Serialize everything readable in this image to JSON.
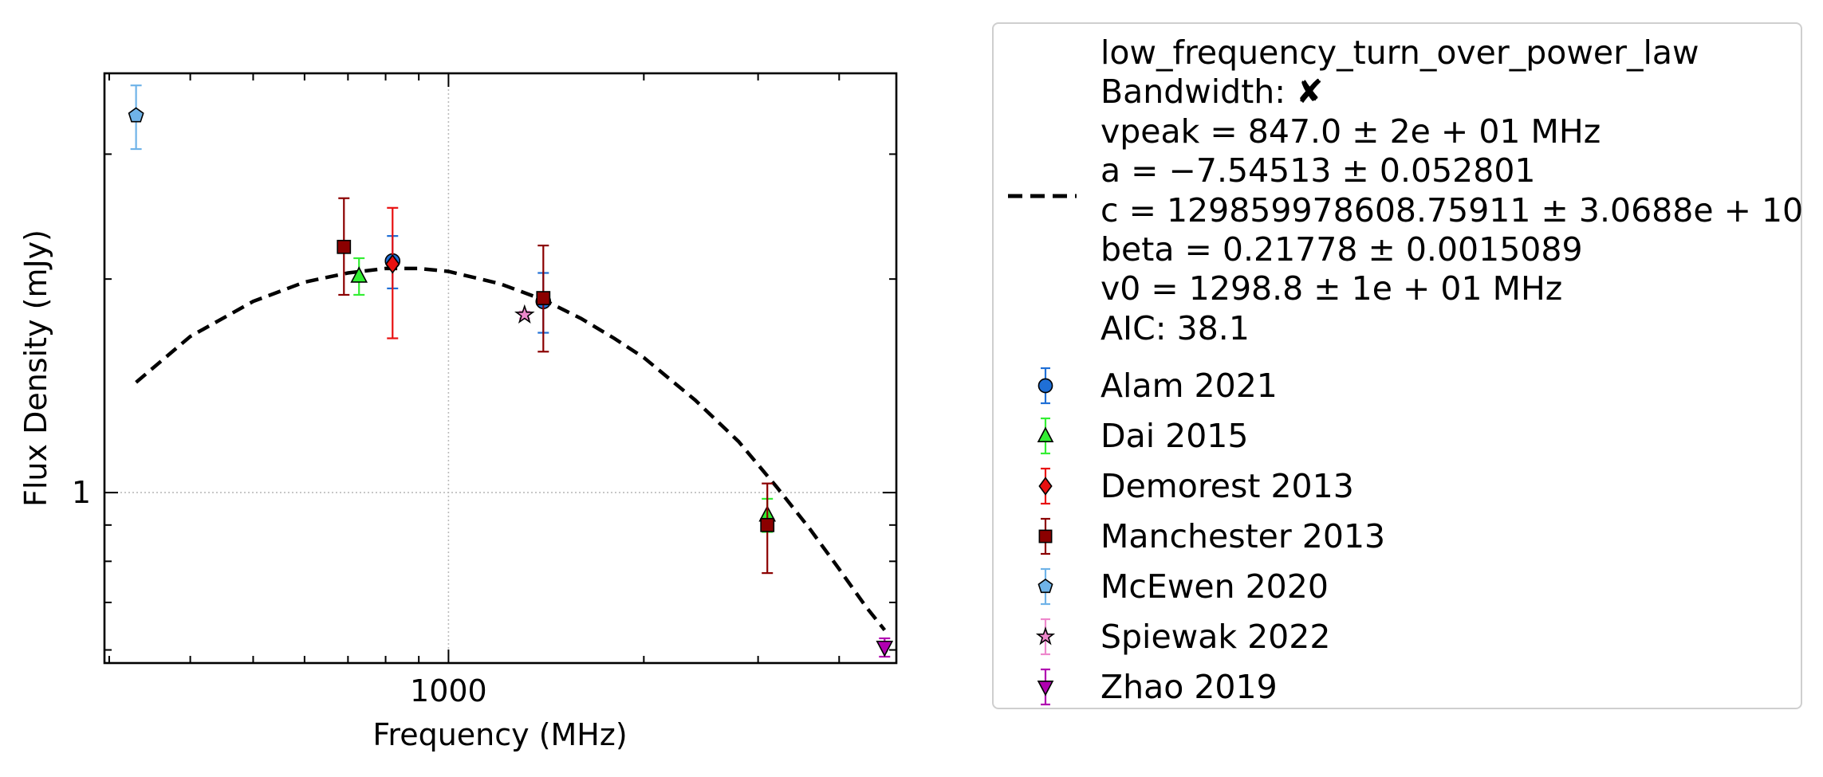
{
  "chart_data": {
    "type": "scatter",
    "xlabel": "Frequency (MHz)",
    "ylabel": "Flux Density (mJy)",
    "xscale": "log",
    "yscale": "log",
    "xlim": [
      295,
      4900
    ],
    "ylim": [
      0.575,
      3.9
    ],
    "xticks": [
      1000
    ],
    "xtick_labels": [
      "1000"
    ],
    "yticks": [
      1
    ],
    "ytick_labels": [
      "1"
    ],
    "grid": true,
    "legend_position": "outside-right",
    "fit": {
      "label": "low_frequency_turn_over_power_law",
      "lines": [
        "Bandwidth: ✘",
        "vpeak = 847.0 ± 2e + 01 MHz",
        "a = −7.54513 ± 0.052801",
        "c = 129859978608.75911 ± 3.0688e + 10",
        "beta = 0.21778 ± 0.0015089",
        "v0 = 1298.8 ± 1e + 01 MHz",
        "AIC: 38.1"
      ],
      "color": "#000000",
      "style": "dashed",
      "points": [
        [
          330,
          1.43
        ],
        [
          400,
          1.66
        ],
        [
          500,
          1.86
        ],
        [
          600,
          1.98
        ],
        [
          700,
          2.04
        ],
        [
          800,
          2.07
        ],
        [
          900,
          2.07
        ],
        [
          1000,
          2.05
        ],
        [
          1200,
          1.97
        ],
        [
          1400,
          1.87
        ],
        [
          1600,
          1.76
        ],
        [
          1800,
          1.65
        ],
        [
          2000,
          1.55
        ],
        [
          2400,
          1.35
        ],
        [
          2800,
          1.18
        ],
        [
          3200,
          1.02
        ],
        [
          3600,
          0.89
        ],
        [
          4000,
          0.78
        ],
        [
          4400,
          0.69
        ],
        [
          4700,
          0.64
        ]
      ]
    },
    "series": [
      {
        "name": "Alam 2021",
        "marker": "circle",
        "color": "#1f6fd6",
        "points": [
          [
            820,
            2.12,
            0.18,
            0.18
          ],
          [
            1400,
            1.86,
            0.18,
            0.18
          ]
        ]
      },
      {
        "name": "Dai 2015",
        "marker": "triangle-up",
        "color": "#33ee33",
        "points": [
          [
            728,
            2.02,
            0.12,
            0.12
          ],
          [
            3100,
            0.93,
            0.05,
            0.05
          ]
        ]
      },
      {
        "name": "Demorest 2013",
        "marker": "diamond",
        "color": "#e81010",
        "points": [
          [
            820,
            2.1,
            0.45,
            0.42
          ]
        ]
      },
      {
        "name": "Manchester 2013",
        "marker": "square",
        "color": "#8b0000",
        "points": [
          [
            690,
            2.22,
            0.32,
            0.38
          ],
          [
            1400,
            1.88,
            0.3,
            0.35
          ],
          [
            3100,
            0.9,
            0.13,
            0.13
          ]
        ]
      },
      {
        "name": "McEwen 2020",
        "marker": "pentagon",
        "color": "#6fb3e8",
        "points": [
          [
            330,
            3.4,
            0.35,
            0.35
          ]
        ]
      },
      {
        "name": "Spiewak 2022",
        "marker": "star",
        "color": "#ee88cc",
        "points": [
          [
            1310,
            1.78,
            0.02,
            0.02
          ]
        ]
      },
      {
        "name": "Zhao 2019",
        "marker": "triangle-down",
        "color": "#b000b0",
        "points": [
          [
            4700,
            0.605,
            0.018,
            0.018
          ]
        ]
      }
    ]
  }
}
